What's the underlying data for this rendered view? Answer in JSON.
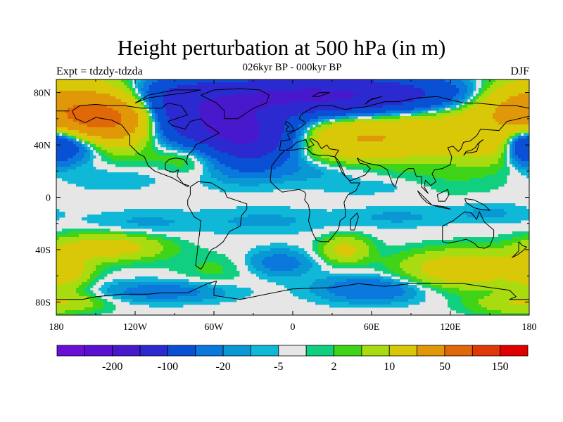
{
  "title": "Height perturbation at 500 hPa (in m)",
  "subtitle": "026kyr BP - 000kyr BP",
  "left_label": "Expt = tdzdy-tdzda",
  "right_label": "DJF",
  "map": {
    "lon_range": [
      -180,
      180
    ],
    "lat_range": [
      -90,
      90
    ],
    "x_ticks": [
      {
        "lon": -180,
        "label": "180"
      },
      {
        "lon": -120,
        "label": "120W"
      },
      {
        "lon": -60,
        "label": "60W"
      },
      {
        "lon": 0,
        "label": "0"
      },
      {
        "lon": 60,
        "label": "60E"
      },
      {
        "lon": 120,
        "label": "120E"
      },
      {
        "lon": 180,
        "label": "180"
      }
    ],
    "y_ticks": [
      {
        "lat": 80,
        "label": "80N"
      },
      {
        "lat": 40,
        "label": "40N"
      },
      {
        "lat": 0,
        "label": "0"
      },
      {
        "lat": -40,
        "label": "40S"
      },
      {
        "lat": -80,
        "label": "80S"
      }
    ]
  },
  "colorbar": {
    "colors": [
      "#6a0fd8",
      "#5a10d2",
      "#4818cc",
      "#2a2ad0",
      "#0a50d4",
      "#0a78dc",
      "#0a98d4",
      "#10b8d8",
      "#e6e6e6",
      "#10d080",
      "#40d418",
      "#a8dc10",
      "#d8c808",
      "#e09808",
      "#e06808",
      "#e03808",
      "#e00000"
    ],
    "labels": [
      {
        "after_box": 2,
        "text": "-200"
      },
      {
        "after_box": 4,
        "text": "-100"
      },
      {
        "after_box": 6,
        "text": "-20"
      },
      {
        "after_box": 8,
        "text": "-5"
      },
      {
        "after_box": 10,
        "text": "2"
      },
      {
        "after_box": 12,
        "text": "10"
      },
      {
        "after_box": 14,
        "text": "50"
      },
      {
        "after_box": 16,
        "text": "150"
      }
    ]
  },
  "field_blobs": [
    {
      "lon": -160,
      "lat": 62,
      "rlon": 60,
      "rlat": 25,
      "v": 80
    },
    {
      "lon": -140,
      "lat": 60,
      "rlon": 35,
      "rlat": 16,
      "v": 70
    },
    {
      "lon": -170,
      "lat": 42,
      "rlon": 28,
      "rlat": 14,
      "v": -60
    },
    {
      "lon": -90,
      "lat": 64,
      "rlon": 38,
      "rlat": 22,
      "v": -70
    },
    {
      "lon": -40,
      "lat": 48,
      "rlon": 40,
      "rlat": 22,
      "v": -120
    },
    {
      "lon": 20,
      "lat": 78,
      "rlon": 100,
      "rlat": 14,
      "v": -110
    },
    {
      "lon": -70,
      "lat": 34,
      "rlon": 30,
      "rlat": 14,
      "v": 35
    },
    {
      "lon": 45,
      "lat": 45,
      "rlon": 50,
      "rlat": 16,
      "v": 45
    },
    {
      "lon": 100,
      "lat": 50,
      "rlon": 45,
      "rlat": 20,
      "v": 25
    },
    {
      "lon": 165,
      "lat": 75,
      "rlon": 30,
      "rlat": 14,
      "v": 18
    },
    {
      "lon": 150,
      "lat": 38,
      "rlon": 30,
      "rlat": 14,
      "v": 14
    },
    {
      "lon": 178,
      "lat": 40,
      "rlon": 14,
      "rlat": 14,
      "v": -40
    },
    {
      "lon": -140,
      "lat": 15,
      "rlon": 40,
      "rlat": 10,
      "v": -6
    },
    {
      "lon": 20,
      "lat": 20,
      "rlon": 40,
      "rlat": 8,
      "v": -6
    },
    {
      "lon": 60,
      "lat": 8,
      "rlon": 40,
      "rlat": 6,
      "v": -5
    },
    {
      "lon": 120,
      "lat": 12,
      "rlon": 45,
      "rlat": 12,
      "v": 4
    },
    {
      "lon": -115,
      "lat": -20,
      "rlon": 45,
      "rlat": 10,
      "v": -6
    },
    {
      "lon": -20,
      "lat": -18,
      "rlon": 50,
      "rlat": 10,
      "v": -6
    },
    {
      "lon": 80,
      "lat": -15,
      "rlon": 40,
      "rlat": 8,
      "v": -6
    },
    {
      "lon": 150,
      "lat": -12,
      "rlon": 30,
      "rlat": 8,
      "v": -6
    },
    {
      "lon": -140,
      "lat": -38,
      "rlon": 40,
      "rlat": 10,
      "v": 30
    },
    {
      "lon": 40,
      "lat": -40,
      "rlon": 18,
      "rlat": 10,
      "v": 25
    },
    {
      "lon": 130,
      "lat": -55,
      "rlon": 45,
      "rlat": 14,
      "v": 35
    },
    {
      "lon": -175,
      "lat": -55,
      "rlon": 20,
      "rlat": 14,
      "v": 30
    },
    {
      "lon": -60,
      "lat": -55,
      "rlon": 30,
      "rlat": 12,
      "v": 6
    },
    {
      "lon": -10,
      "lat": -50,
      "rlon": 25,
      "rlat": 10,
      "v": -15
    },
    {
      "lon": 60,
      "lat": -70,
      "rlon": 40,
      "rlat": 10,
      "v": -20
    },
    {
      "lon": -100,
      "lat": -72,
      "rlon": 50,
      "rlat": 8,
      "v": -15
    },
    {
      "lon": -170,
      "lat": -80,
      "rlon": 30,
      "rlat": 8,
      "v": 15
    },
    {
      "lon": 160,
      "lat": -82,
      "rlon": 30,
      "rlat": 8,
      "v": 12
    }
  ]
}
